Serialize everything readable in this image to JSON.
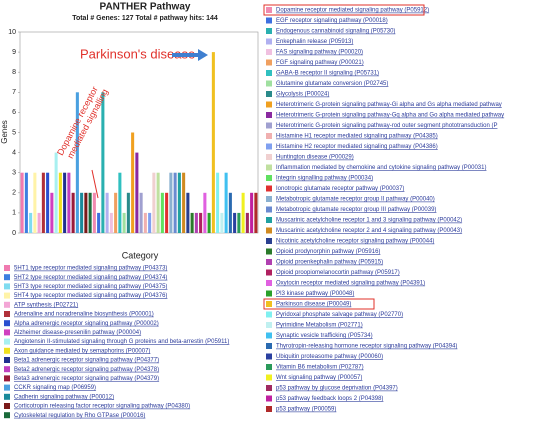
{
  "chart_data": {
    "type": "bar",
    "title": "PANTHER Pathway",
    "subtitle": "Total # Genes: 127   Total # pathway hits: 144",
    "y_label": "Genes",
    "x_label": "Category",
    "ylim": [
      0,
      10
    ],
    "yticks": [
      0,
      1,
      2,
      3,
      4,
      5,
      6,
      7,
      8,
      9,
      10
    ],
    "annotations": {
      "parkinson": "Parkinson's disease",
      "dopamine": [
        "Dopamine receptor",
        "mediated signalling"
      ]
    },
    "annotation_color": "#e0302a",
    "arrow_color": "#3f7fd0",
    "boxed": [
      17,
      45
    ],
    "categories": [
      "5HT1 type receptor mediated signaling pathway (P04373)",
      "5HT2 type receptor mediated signaling pathway (P04374)",
      "5HT3 type receptor mediated signaling pathway (P04375)",
      "5HT4 type receptor mediated signaling pathway (P04376)",
      "ATP synthesis (P02721)",
      "Adrenaline and noradrenaline biosynthesis (P00001)",
      "Alpha adrenergic receptor signaling pathway (P00002)",
      "Alzheimer disease-presenilin pathway (P00004)",
      "Angiotensin II-stimulated signaling through G proteins and beta-arrestin (P05911)",
      "Axon guidance mediated by semaphorins (P00007)",
      "Beta1 adrenergic receptor signaling pathway (P04377)",
      "Beta2 adrenergic receptor signaling pathway (P04378)",
      "Beta3 adrenergic receptor signaling pathway (P04379)",
      "CCKR signaling map (P06959)",
      "Cadherin signaling pathway (P00012)",
      "Corticotropin releasing factor receptor signaling pathway (P04380)",
      "Cytoskeletal regulation by Rho GTPase (P00016)",
      "Dopamine receptor mediated signaling pathway (P05912)",
      "EGF receptor signaling pathway (P00018)",
      "Endogenous cannabinoid signaling (P05730)",
      "Enkephalin release (P05913)",
      "FAS signaling pathway (P00020)",
      "FGF signaling pathway (P00021)",
      "GABA-B receptor II signaling (P05731)",
      "Glutamine glutamate conversion (P02745)",
      "Glycolysis (P00024)",
      "Heterotrimeric G-protein signaling pathway-Gi alpha and Gs alpha mediated pathway",
      "Heterotrimeric G-protein signaling pathway-Gq alpha and Go alpha mediated pathway",
      "Heterotrimeric G-protein signaling pathway-rod outer segment phototransduction (P",
      "Histamine H1 receptor mediated signaling pathway (P04385)",
      "Histamine H2 receptor mediated signaling pathway (P04386)",
      "Huntington disease (P00029)",
      "Inflammation mediated by chemokine and cytokine signaling pathway (P00031)",
      "Integrin signalling pathway (P00034)",
      "Ionotropic glutamate receptor pathway (P00037)",
      "Metabotropic glutamate receptor group II pathway (P00040)",
      "Metabotropic glutamate receptor group III pathway (P00039)",
      "Muscarinic acetylcholine receptor 1 and 3 signaling pathway (P00042)",
      "Muscarinic acetylcholine receptor 2 and 4 signaling pathway (P00043)",
      "Nicotinic acetylcholine receptor signaling pathway (P00044)",
      "Opioid prodynorphin pathway (P05916)",
      "Opioid proenkephalin pathway (P05915)",
      "Opioid proopiomelanocortin pathway (P05917)",
      "Oxytocin receptor mediated signaling pathway (P04391)",
      "PI3 kinase pathway (P00048)",
      "Parkinson disease (P00049)",
      "Pyridoxal phosphate salvage pathway (P02770)",
      "Pyrimidine Metabolism (P02771)",
      "Synaptic vesicle trafficking (P05734)",
      "Thyrotropin-releasing hormone receptor signaling pathway (P04394)",
      "Ubiquitin proteasome pathway (P00060)",
      "Vitamin B6 metabolism (P02787)",
      "Wnt signaling pathway (P00057)",
      "p53 pathway by glucose deprivation (P04397)",
      "p53 pathway feedback loops 2 (P04398)",
      "p53 pathway (P00059)"
    ],
    "values": [
      3,
      3,
      1,
      3,
      1,
      3,
      3,
      2,
      4,
      3,
      3,
      3,
      2,
      7,
      2,
      2,
      2,
      2,
      1,
      7,
      2,
      1,
      2,
      3,
      1,
      2,
      5,
      4,
      2,
      1,
      1,
      3,
      3,
      2,
      2,
      3,
      3,
      3,
      3,
      2,
      1,
      1,
      1,
      2,
      1,
      9,
      3,
      1,
      3,
      2,
      1,
      1,
      2,
      1,
      2,
      2
    ],
    "colors": [
      "#f07ab0",
      "#3d7fe0",
      "#7fdcf0",
      "#fff3a8",
      "#f3a6d6",
      "#b0303a",
      "#2a4fd0",
      "#d040c0",
      "#a8f0f0",
      "#f0e020",
      "#203090",
      "#c040c0",
      "#9a1a3a",
      "#4aa0e0",
      "#1a8a9a",
      "#7a1a1a",
      "#1a6a3a",
      "#f08ab0",
      "#3d6fe0",
      "#2ab0b0",
      "#b0b0f0",
      "#f0c0e0",
      "#f0a060",
      "#30c0c0",
      "#a0e0a0",
      "#2a8a8a",
      "#f0a020",
      "#8a2aa0",
      "#a0a0d0",
      "#f0b0b0",
      "#80a0f0",
      "#f0d0d0",
      "#c0e0a0",
      "#60e060",
      "#e03030",
      "#8ab0d0",
      "#6a8ad0",
      "#20a0a0",
      "#d08a20",
      "#2a4090",
      "#2a7a2a",
      "#b040b0",
      "#b02060",
      "#e060e0",
      "#2aa02a",
      "#f0c020",
      "#80f0f0",
      "#c0f0f0",
      "#40c0f0",
      "#2a6ab0",
      "#2a40a0",
      "#2a9a5a",
      "#f0f020",
      "#a02a60",
      "#c020a0",
      "#b02a2a"
    ]
  }
}
